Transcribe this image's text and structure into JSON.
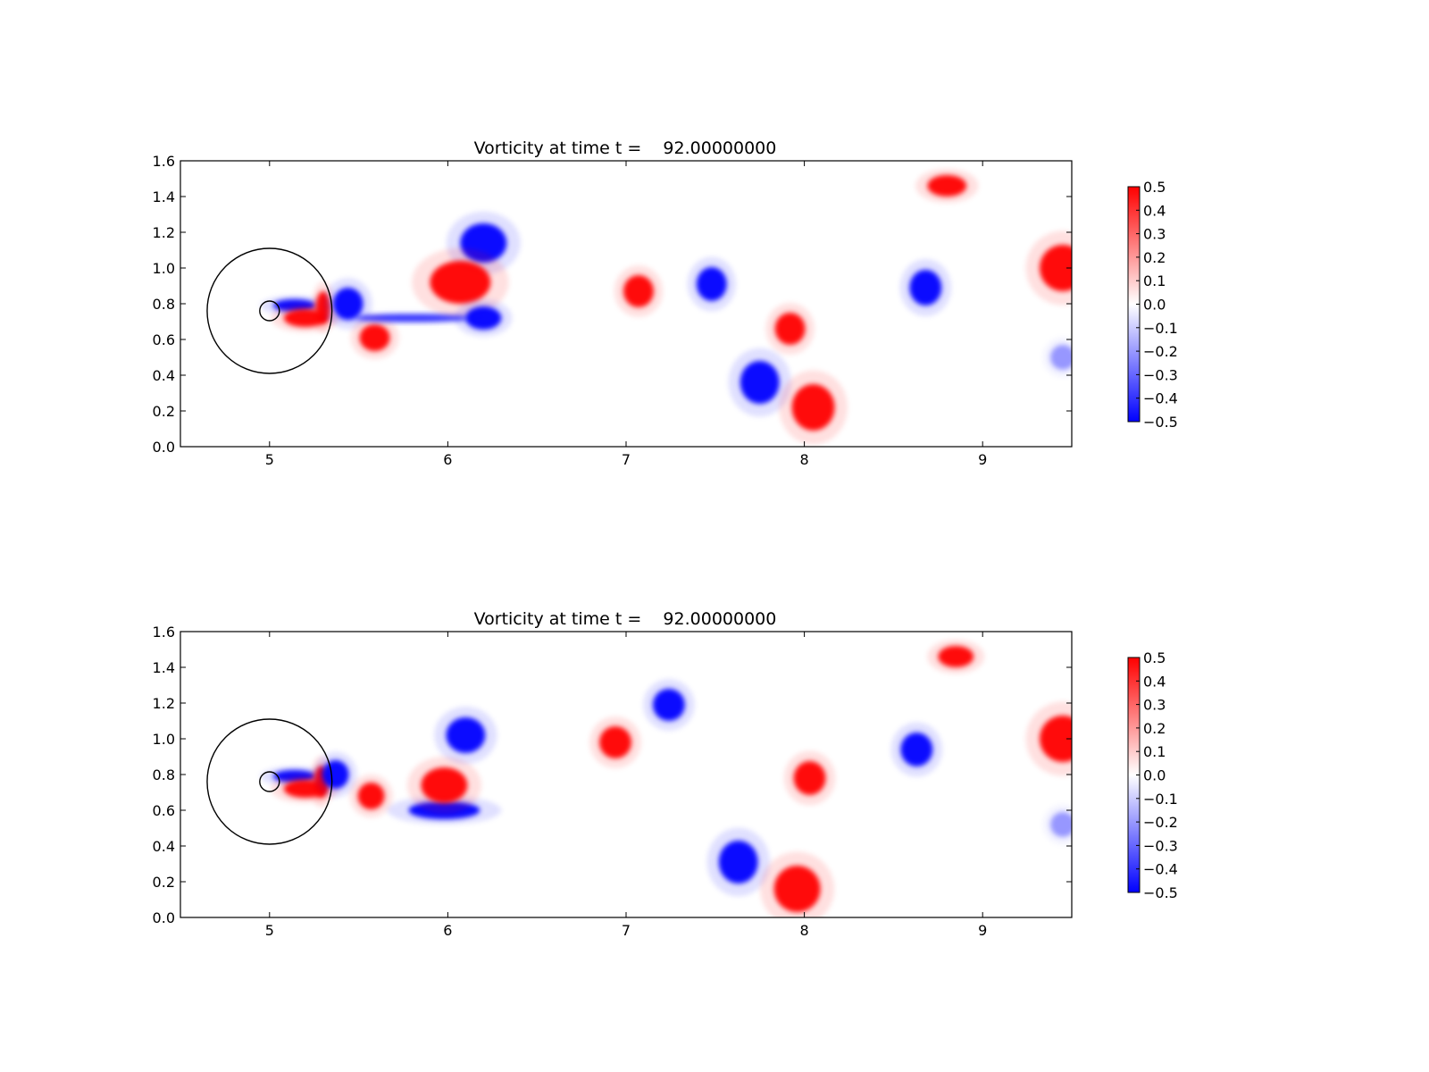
{
  "chart_data": [
    {
      "type": "heatmap",
      "title": "Vorticity at time t =    92.00000000",
      "xlabel": "",
      "ylabel": "",
      "xlim": [
        4.5,
        9.5
      ],
      "ylim": [
        0.0,
        1.6
      ],
      "xticks": [
        "5",
        "6",
        "7",
        "8",
        "9"
      ],
      "yticks": [
        "0.0",
        "0.2",
        "0.4",
        "0.6",
        "0.8",
        "1.0",
        "1.2",
        "1.4",
        "1.6"
      ],
      "colorbar": {
        "range": [
          -0.5,
          0.5
        ],
        "ticks": [
          "−0.5",
          "−0.4",
          "−0.3",
          "−0.2",
          "−0.1",
          "0.0",
          "0.1",
          "0.2",
          "0.3",
          "0.4",
          "0.5"
        ],
        "low_color": "#0000ff",
        "mid_color": "#ffffff",
        "high_color": "#ff0000"
      },
      "circles": [
        {
          "cx": 5.0,
          "cy": 0.76,
          "r": 0.35
        },
        {
          "cx": 5.0,
          "cy": 0.76,
          "r": 0.055
        }
      ],
      "vortices": [
        {
          "x": 5.14,
          "y": 0.79,
          "rx": 0.12,
          "ry": 0.035,
          "w": -0.5
        },
        {
          "x": 5.2,
          "y": 0.72,
          "rx": 0.12,
          "ry": 0.05,
          "w": 0.5
        },
        {
          "x": 5.3,
          "y": 0.78,
          "rx": 0.04,
          "ry": 0.09,
          "w": 0.5
        },
        {
          "x": 5.44,
          "y": 0.8,
          "rx": 0.085,
          "ry": 0.09,
          "w": -0.5
        },
        {
          "x": 5.59,
          "y": 0.61,
          "rx": 0.085,
          "ry": 0.075,
          "w": 0.5
        },
        {
          "x": 5.8,
          "y": 0.72,
          "rx": 0.32,
          "ry": 0.022,
          "w": -0.4
        },
        {
          "x": 6.2,
          "y": 1.14,
          "rx": 0.13,
          "ry": 0.11,
          "w": -0.5
        },
        {
          "x": 6.07,
          "y": 0.92,
          "rx": 0.17,
          "ry": 0.12,
          "w": 0.5
        },
        {
          "x": 6.2,
          "y": 0.72,
          "rx": 0.1,
          "ry": 0.065,
          "w": -0.5
        },
        {
          "x": 7.07,
          "y": 0.87,
          "rx": 0.085,
          "ry": 0.09,
          "w": 0.5
        },
        {
          "x": 7.48,
          "y": 0.91,
          "rx": 0.085,
          "ry": 0.095,
          "w": -0.5
        },
        {
          "x": 7.92,
          "y": 0.66,
          "rx": 0.085,
          "ry": 0.09,
          "w": 0.5
        },
        {
          "x": 7.75,
          "y": 0.36,
          "rx": 0.11,
          "ry": 0.12,
          "w": -0.5
        },
        {
          "x": 8.05,
          "y": 0.22,
          "rx": 0.12,
          "ry": 0.13,
          "w": 0.5
        },
        {
          "x": 8.68,
          "y": 0.89,
          "rx": 0.09,
          "ry": 0.1,
          "w": -0.5
        },
        {
          "x": 8.8,
          "y": 1.46,
          "rx": 0.11,
          "ry": 0.06,
          "w": 0.5
        },
        {
          "x": 9.45,
          "y": 1.0,
          "rx": 0.13,
          "ry": 0.13,
          "w": 0.5
        },
        {
          "x": 9.45,
          "y": 0.5,
          "rx": 0.07,
          "ry": 0.07,
          "w": -0.2
        }
      ]
    },
    {
      "type": "heatmap",
      "title": "Vorticity at time t =    92.00000000",
      "xlabel": "",
      "ylabel": "",
      "xlim": [
        4.5,
        9.5
      ],
      "ylim": [
        0.0,
        1.6
      ],
      "xticks": [
        "5",
        "6",
        "7",
        "8",
        "9"
      ],
      "yticks": [
        "0.0",
        "0.2",
        "0.4",
        "0.6",
        "0.8",
        "1.0",
        "1.2",
        "1.4",
        "1.6"
      ],
      "colorbar": {
        "range": [
          -0.5,
          0.5
        ],
        "ticks": [
          "−0.5",
          "−0.4",
          "−0.3",
          "−0.2",
          "−0.1",
          "0.0",
          "0.1",
          "0.2",
          "0.3",
          "0.4",
          "0.5"
        ],
        "low_color": "#0000ff",
        "mid_color": "#ffffff",
        "high_color": "#ff0000"
      },
      "circles": [
        {
          "cx": 5.0,
          "cy": 0.76,
          "r": 0.35
        },
        {
          "cx": 5.0,
          "cy": 0.76,
          "r": 0.055
        }
      ],
      "vortices": [
        {
          "x": 5.14,
          "y": 0.79,
          "rx": 0.12,
          "ry": 0.035,
          "w": -0.5
        },
        {
          "x": 5.2,
          "y": 0.72,
          "rx": 0.12,
          "ry": 0.05,
          "w": 0.5
        },
        {
          "x": 5.29,
          "y": 0.76,
          "rx": 0.04,
          "ry": 0.09,
          "w": 0.5
        },
        {
          "x": 5.37,
          "y": 0.8,
          "rx": 0.075,
          "ry": 0.08,
          "w": -0.5
        },
        {
          "x": 5.57,
          "y": 0.68,
          "rx": 0.075,
          "ry": 0.075,
          "w": 0.5
        },
        {
          "x": 5.98,
          "y": 0.6,
          "rx": 0.2,
          "ry": 0.05,
          "w": -0.5
        },
        {
          "x": 5.98,
          "y": 0.74,
          "rx": 0.13,
          "ry": 0.1,
          "w": 0.5
        },
        {
          "x": 6.1,
          "y": 1.02,
          "rx": 0.11,
          "ry": 0.1,
          "w": -0.5
        },
        {
          "x": 6.94,
          "y": 0.98,
          "rx": 0.09,
          "ry": 0.09,
          "w": 0.5
        },
        {
          "x": 7.24,
          "y": 1.19,
          "rx": 0.09,
          "ry": 0.09,
          "w": -0.5
        },
        {
          "x": 8.03,
          "y": 0.78,
          "rx": 0.09,
          "ry": 0.095,
          "w": 0.5
        },
        {
          "x": 7.63,
          "y": 0.31,
          "rx": 0.11,
          "ry": 0.12,
          "w": -0.5
        },
        {
          "x": 7.96,
          "y": 0.16,
          "rx": 0.13,
          "ry": 0.13,
          "w": 0.5
        },
        {
          "x": 8.63,
          "y": 0.94,
          "rx": 0.09,
          "ry": 0.095,
          "w": -0.5
        },
        {
          "x": 8.85,
          "y": 1.46,
          "rx": 0.1,
          "ry": 0.06,
          "w": 0.5
        },
        {
          "x": 9.45,
          "y": 1.0,
          "rx": 0.13,
          "ry": 0.13,
          "w": 0.5
        },
        {
          "x": 9.45,
          "y": 0.52,
          "rx": 0.07,
          "ry": 0.07,
          "w": -0.2
        }
      ]
    }
  ]
}
